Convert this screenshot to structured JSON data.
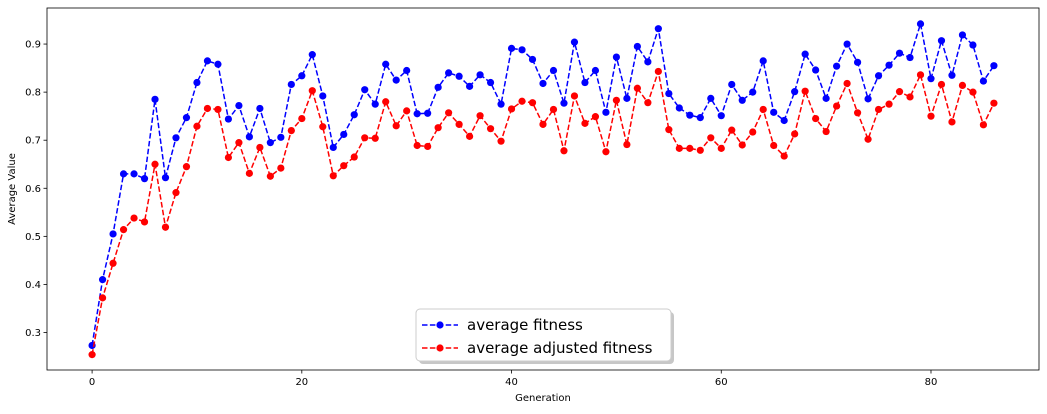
{
  "chart_data": {
    "type": "line",
    "title": "",
    "xlabel": "Generation",
    "ylabel": "Average Value",
    "xlim": [
      -4.3,
      90.3
    ],
    "ylim": [
      0.222,
      0.975
    ],
    "xticks": [
      0,
      20,
      40,
      60,
      80
    ],
    "yticks": [
      0.3,
      0.4,
      0.5,
      0.6,
      0.7,
      0.8,
      0.9
    ],
    "grid": false,
    "legend_position": "bottom-center",
    "x": [
      0,
      1,
      2,
      3,
      4,
      5,
      6,
      7,
      8,
      9,
      10,
      11,
      12,
      13,
      14,
      15,
      16,
      17,
      18,
      19,
      20,
      21,
      22,
      23,
      24,
      25,
      26,
      27,
      28,
      29,
      30,
      31,
      32,
      33,
      34,
      35,
      36,
      37,
      38,
      39,
      40,
      41,
      42,
      43,
      44,
      45,
      46,
      47,
      48,
      49,
      50,
      51,
      52,
      53,
      54,
      55,
      56,
      57,
      58,
      59,
      60,
      61,
      62,
      63,
      64,
      65,
      66,
      67,
      68,
      69,
      70,
      71,
      72,
      73,
      74,
      75,
      76,
      77,
      78,
      79,
      80,
      81,
      82,
      83,
      84,
      85,
      86
    ],
    "series": [
      {
        "name": "average fitness",
        "color": "#0000ff",
        "style": "dashed",
        "marker": "circle",
        "values": [
          0.273,
          0.41,
          0.505,
          0.63,
          0.63,
          0.62,
          0.785,
          0.622,
          0.705,
          0.747,
          0.82,
          0.865,
          0.858,
          0.744,
          0.772,
          0.707,
          0.766,
          0.695,
          0.706,
          0.816,
          0.834,
          0.878,
          0.792,
          0.685,
          0.712,
          0.753,
          0.805,
          0.775,
          0.858,
          0.825,
          0.845,
          0.755,
          0.756,
          0.81,
          0.84,
          0.833,
          0.812,
          0.836,
          0.82,
          0.775,
          0.891,
          0.888,
          0.868,
          0.818,
          0.845,
          0.777,
          0.904,
          0.82,
          0.845,
          0.758,
          0.873,
          0.787,
          0.895,
          0.863,
          0.932,
          0.797,
          0.767,
          0.752,
          0.747,
          0.787,
          0.751,
          0.816,
          0.783,
          0.8,
          0.865,
          0.758,
          0.741,
          0.801,
          0.879,
          0.846,
          0.787,
          0.854,
          0.9,
          0.862,
          0.786,
          0.834,
          0.856,
          0.881,
          0.872,
          0.942,
          0.828,
          0.907,
          0.835,
          0.919,
          0.898,
          0.823,
          0.855
        ]
      },
      {
        "name": "average adjusted fitness",
        "color": "#ff0000",
        "style": "dashed",
        "marker": "circle",
        "values": [
          0.254,
          0.372,
          0.444,
          0.514,
          0.538,
          0.53,
          0.65,
          0.519,
          0.591,
          0.645,
          0.729,
          0.766,
          0.764,
          0.664,
          0.695,
          0.631,
          0.685,
          0.625,
          0.642,
          0.72,
          0.745,
          0.803,
          0.728,
          0.626,
          0.647,
          0.665,
          0.705,
          0.704,
          0.78,
          0.73,
          0.761,
          0.689,
          0.687,
          0.726,
          0.757,
          0.733,
          0.708,
          0.751,
          0.724,
          0.698,
          0.765,
          0.781,
          0.778,
          0.733,
          0.764,
          0.678,
          0.792,
          0.735,
          0.749,
          0.676,
          0.783,
          0.691,
          0.808,
          0.778,
          0.843,
          0.722,
          0.683,
          0.683,
          0.679,
          0.705,
          0.683,
          0.721,
          0.69,
          0.717,
          0.764,
          0.689,
          0.667,
          0.713,
          0.802,
          0.745,
          0.718,
          0.771,
          0.818,
          0.757,
          0.702,
          0.764,
          0.775,
          0.801,
          0.79,
          0.836,
          0.75,
          0.816,
          0.738,
          0.814,
          0.8,
          0.732,
          0.777
        ]
      }
    ]
  }
}
